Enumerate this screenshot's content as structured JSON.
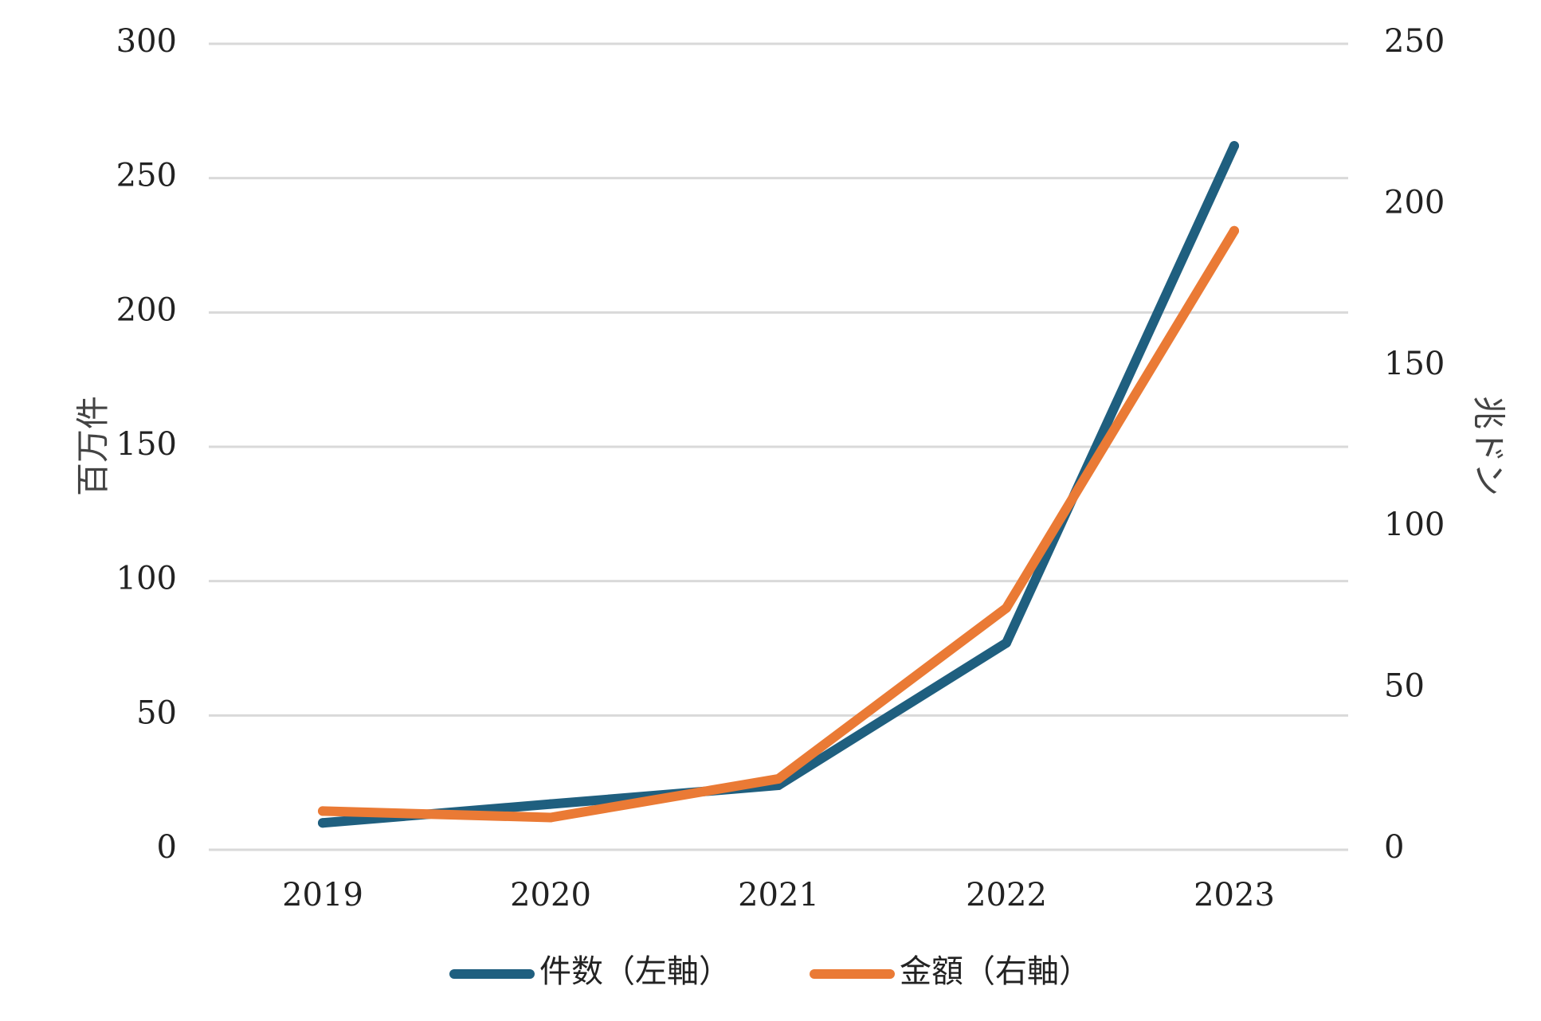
{
  "chart_data": {
    "type": "line",
    "categories": [
      "2019",
      "2020",
      "2021",
      "2022",
      "2023"
    ],
    "y_left": {
      "label": "百万件",
      "ylim": [
        0,
        300
      ],
      "ticks": [
        "0",
        "50",
        "100",
        "150",
        "200",
        "250",
        "300"
      ]
    },
    "y_right": {
      "label": "兆ドン",
      "ylim": [
        0,
        250
      ],
      "ticks": [
        "0",
        "50",
        "100",
        "150",
        "200",
        "250"
      ]
    },
    "series": [
      {
        "name": "件数（左軸）",
        "axis": "left",
        "color": "#1f5f7f",
        "values": [
          10,
          17,
          24,
          77,
          262
        ]
      },
      {
        "name": "金額（右軸）",
        "axis": "right",
        "color": "#ea7a35",
        "values": [
          12,
          10,
          22,
          75,
          192
        ]
      }
    ],
    "grid": true,
    "legend_position": "bottom"
  }
}
